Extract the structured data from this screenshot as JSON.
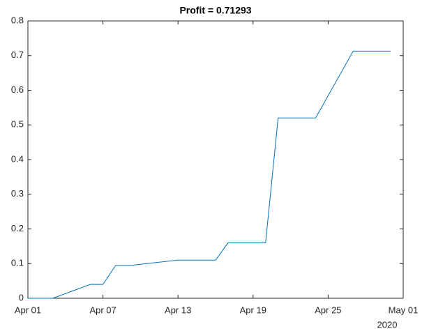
{
  "chart_data": {
    "type": "line",
    "title": "Profit = 0.71293",
    "x": [
      "2020-04-01",
      "2020-04-03",
      "2020-04-06",
      "2020-04-07",
      "2020-04-08",
      "2020-04-09",
      "2020-04-13",
      "2020-04-16",
      "2020-04-17",
      "2020-04-20",
      "2020-04-21",
      "2020-04-24",
      "2020-04-27",
      "2020-04-30"
    ],
    "series": [
      {
        "name": "Profit",
        "color": "#0072bd",
        "values": [
          0,
          0,
          0.04,
          0.04,
          0.094,
          0.094,
          0.11,
          0.11,
          0.16,
          0.16,
          0.52,
          0.52,
          0.71293,
          0.71293
        ]
      }
    ],
    "xlim": [
      "2020-04-01",
      "2020-05-01"
    ],
    "xticks": [
      {
        "value": "2020-04-01",
        "label": "Apr 01"
      },
      {
        "value": "2020-04-07",
        "label": "Apr 07"
      },
      {
        "value": "2020-04-13",
        "label": "Apr 13"
      },
      {
        "value": "2020-04-19",
        "label": "Apr 19"
      },
      {
        "value": "2020-04-25",
        "label": "Apr 25"
      },
      {
        "value": "2020-05-01",
        "label": "May 01"
      }
    ],
    "x_year_label": "2020",
    "ylim": [
      0,
      0.8
    ],
    "yticks": [
      0,
      0.1,
      0.2,
      0.3,
      0.4,
      0.5,
      0.6,
      0.7,
      0.8
    ],
    "grid": false
  }
}
